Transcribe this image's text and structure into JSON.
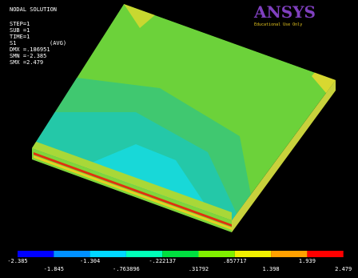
{
  "info": [
    "NODAL SOLUTION",
    "STEP=1",
    "SUB =1",
    "TIME=1",
    "S1",
    "(AVG)",
    "DMX =.186951",
    "SMN =-2.385",
    "SMX =2.479"
  ],
  "logo": {
    "name": "ANSYS",
    "note": "Educational Use Only"
  },
  "legend": {
    "top_labels": [
      "-2.385",
      "-1.304",
      "-.222137",
      ".857717",
      "1.939"
    ],
    "bottom_labels": [
      "-1.845",
      "-.763896",
      ".31792",
      "1.398",
      "2.479"
    ]
  }
}
